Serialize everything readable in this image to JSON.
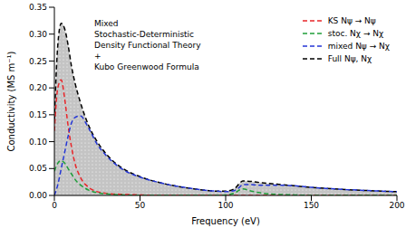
{
  "chart_data": {
    "type": "line",
    "annotation": [
      "Mixed",
      "Stochastic-Deterministic",
      "Density Functional Theory",
      "+",
      "Kubo Greenwood Formula"
    ],
    "x_label": "Frequency (eV)",
    "y_label": "Conductivity  (MS m⁻¹)",
    "x": [
      0,
      2,
      4,
      6,
      8,
      10,
      12,
      15,
      20,
      25,
      30,
      40,
      50,
      60,
      70,
      80,
      90,
      95,
      100,
      105,
      108,
      110,
      115,
      120,
      130,
      140,
      150,
      170,
      200
    ],
    "series": [
      {
        "name": "KS Nψ → Nψ",
        "color": "#e8262a",
        "line_style": "dashed",
        "values": [
          0.12,
          0.2,
          0.215,
          0.18,
          0.13,
          0.09,
          0.06,
          0.035,
          0.015,
          0.007,
          0.004,
          0.002,
          0.001,
          0,
          0,
          0,
          0,
          0,
          0,
          0,
          0,
          0,
          0,
          0,
          0,
          0,
          0,
          0,
          0
        ]
      },
      {
        "name": "stoc. Nχ → Nχ",
        "color": "#1f9e3a",
        "line_style": "dashed",
        "values": [
          0.045,
          0.06,
          0.065,
          0.06,
          0.05,
          0.04,
          0.03,
          0.02,
          0.01,
          0.005,
          0.003,
          0.001,
          0,
          0,
          0,
          0,
          0,
          0,
          0.001,
          0.004,
          0.01,
          0.012,
          0.008,
          0.005,
          0.002,
          0.001,
          0,
          0,
          0
        ]
      },
      {
        "name": "mixed Nψ → Nχ",
        "color": "#2436d6",
        "line_style": "dashed",
        "values": [
          0,
          0.02,
          0.05,
          0.08,
          0.11,
          0.135,
          0.145,
          0.148,
          0.125,
          0.095,
          0.075,
          0.048,
          0.034,
          0.025,
          0.018,
          0.013,
          0.009,
          0.008,
          0.007,
          0.009,
          0.015,
          0.02,
          0.02,
          0.019,
          0.019,
          0.018,
          0.015,
          0.011,
          0.007
        ]
      },
      {
        "name": "Full Nψ, Nχ",
        "color": "#000000",
        "line_style": "dashed",
        "type": "area",
        "values": [
          0.14,
          0.28,
          0.32,
          0.31,
          0.28,
          0.24,
          0.21,
          0.175,
          0.13,
          0.1,
          0.078,
          0.05,
          0.035,
          0.025,
          0.018,
          0.013,
          0.009,
          0.008,
          0.008,
          0.012,
          0.022,
          0.027,
          0.026,
          0.024,
          0.021,
          0.018,
          0.015,
          0.011,
          0.007
        ]
      }
    ],
    "xlim": [
      0,
      200
    ],
    "xticks": [
      0,
      50,
      100,
      150,
      200
    ],
    "ylim": [
      0,
      0.35
    ],
    "yticks": [
      {
        "value": 0,
        "label": "0.00"
      },
      {
        "value": 0.05,
        "label": "0.05"
      },
      {
        "value": 0.1,
        "label": "0.10"
      },
      {
        "value": 0.15,
        "label": "0.15"
      },
      {
        "value": 0.2,
        "label": "0.20"
      },
      {
        "value": 0.25,
        "label": "0.25"
      },
      {
        "value": 0.3,
        "label": "0.30"
      },
      {
        "value": 0.35,
        "label": "0.35"
      }
    ],
    "grid": false,
    "legend": "upper right"
  }
}
